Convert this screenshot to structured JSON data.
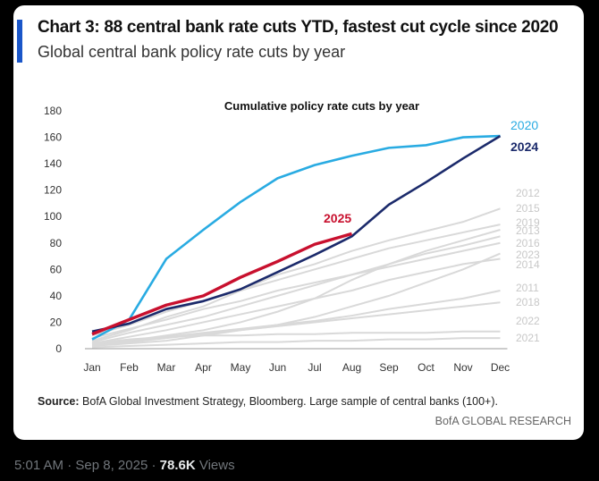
{
  "title": "Chart 3: 88 central bank rate cuts YTD, fastest cut cycle since 2020",
  "subtitle": "Global central bank policy rate cuts by year",
  "source_label": "Source:",
  "source_text": "BofA Global Investment Strategy, Bloomberg. Large sample of central banks (100+).",
  "brand": "BofA GLOBAL RESEARCH",
  "tweet": {
    "time": "5:01 AM",
    "sep": "·",
    "date": "Sep 8, 2025",
    "views_count": "78.6K",
    "views_label": "Views"
  },
  "colors": {
    "y2020": "#29abe2",
    "y2024": "#1b2a6b",
    "y2025": "#c8102e",
    "grey": "#d9d9d9",
    "greylabel": "#c8c8c8"
  },
  "chart_data": {
    "type": "line",
    "title": "Cumulative policy rate cuts by year",
    "categories": [
      "Jan",
      "Feb",
      "Mar",
      "Apr",
      "May",
      "Jun",
      "Jul",
      "Aug",
      "Sep",
      "Oct",
      "Nov",
      "Dec"
    ],
    "yticks": [
      0,
      20,
      40,
      60,
      80,
      100,
      120,
      140,
      160,
      180
    ],
    "ylim": [
      0,
      180
    ],
    "highlight_series": [
      {
        "name": "2020",
        "values": [
          7,
          22,
          68,
          90,
          111,
          129,
          139,
          146,
          152,
          154,
          160,
          161
        ]
      },
      {
        "name": "2024",
        "values": [
          13,
          19,
          30,
          36,
          45,
          58,
          71,
          85,
          109,
          126,
          144,
          161
        ]
      },
      {
        "name": "2025",
        "values": [
          11,
          22,
          33,
          40,
          54,
          66,
          79,
          87
        ]
      }
    ],
    "grey_series": [
      {
        "name": "2012",
        "values": [
          6,
          14,
          24,
          32,
          44,
          56,
          64,
          74,
          82,
          89,
          96,
          106
        ]
      },
      {
        "name": "2015",
        "values": [
          10,
          18,
          28,
          36,
          44,
          52,
          60,
          68,
          76,
          82,
          88,
          94
        ]
      },
      {
        "name": "2019",
        "values": [
          3,
          6,
          10,
          14,
          20,
          28,
          38,
          52,
          64,
          74,
          82,
          90
        ]
      },
      {
        "name": "2013",
        "values": [
          5,
          12,
          18,
          24,
          32,
          40,
          48,
          56,
          64,
          72,
          78,
          85
        ]
      },
      {
        "name": "2016",
        "values": [
          8,
          15,
          22,
          30,
          36,
          44,
          50,
          56,
          62,
          68,
          74,
          80
        ]
      },
      {
        "name": "2023",
        "values": [
          2,
          4,
          6,
          10,
          14,
          18,
          24,
          32,
          40,
          50,
          60,
          72
        ]
      },
      {
        "name": "2014",
        "values": [
          4,
          9,
          14,
          20,
          26,
          32,
          38,
          44,
          52,
          58,
          64,
          68
        ]
      },
      {
        "name": "2011",
        "values": [
          3,
          6,
          9,
          12,
          15,
          18,
          21,
          25,
          30,
          34,
          38,
          44
        ]
      },
      {
        "name": "2018",
        "values": [
          2,
          5,
          8,
          11,
          14,
          17,
          20,
          23,
          26,
          29,
          32,
          35
        ]
      },
      {
        "name": "2022",
        "values": [
          4,
          7,
          9,
          10,
          10,
          11,
          11,
          12,
          12,
          12,
          13,
          13
        ]
      },
      {
        "name": "2021",
        "values": [
          1,
          2,
          3,
          4,
          5,
          5,
          6,
          6,
          7,
          7,
          8,
          8
        ]
      }
    ]
  }
}
